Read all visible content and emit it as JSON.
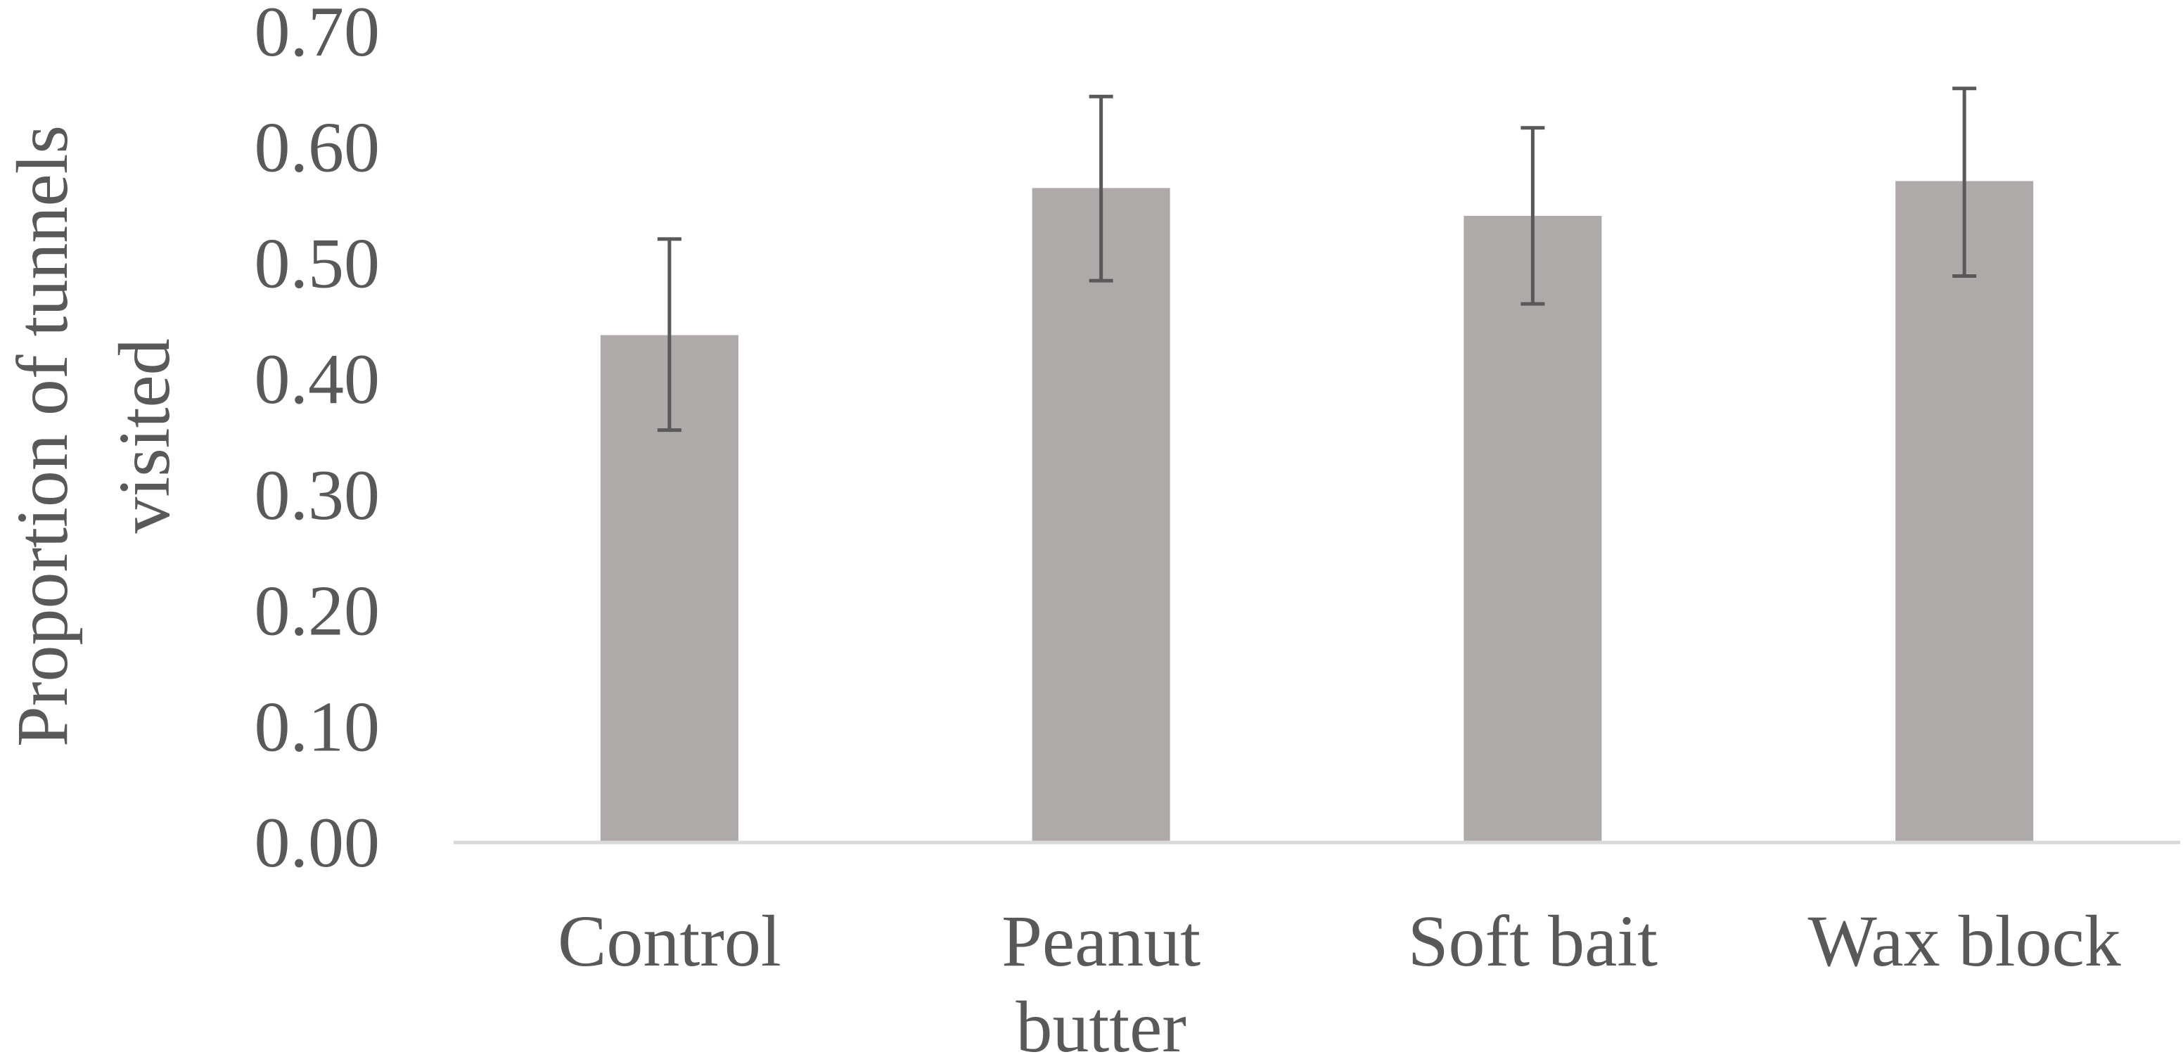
{
  "chart_data": {
    "type": "bar",
    "title": "",
    "xlabel": "",
    "ylabel": "Proportion of tunnels visited",
    "ylabel_lines": [
      "Proportion of tunnels",
      "visited"
    ],
    "ylim": [
      0,
      0.7
    ],
    "yticks": [
      "0.00",
      "0.10",
      "0.20",
      "0.30",
      "0.40",
      "0.50",
      "0.60",
      "0.70"
    ],
    "categories": [
      "Control",
      "Peanut butter",
      "Soft bait",
      "Wax block"
    ],
    "category_lines": [
      [
        "Control"
      ],
      [
        "Peanut",
        "butter"
      ],
      [
        "Soft bait"
      ],
      [
        "Wax block"
      ]
    ],
    "values": [
      0.438,
      0.565,
      0.541,
      0.571
    ],
    "error_bars": [
      {
        "low": 0.356,
        "high": 0.521
      },
      {
        "low": 0.485,
        "high": 0.644
      },
      {
        "low": 0.465,
        "high": 0.617
      },
      {
        "low": 0.489,
        "high": 0.651
      }
    ],
    "bar_color": "#aeaaaa",
    "error_color": "#595959",
    "axis_color": "#d9d9d9",
    "text_color": "#595959"
  }
}
